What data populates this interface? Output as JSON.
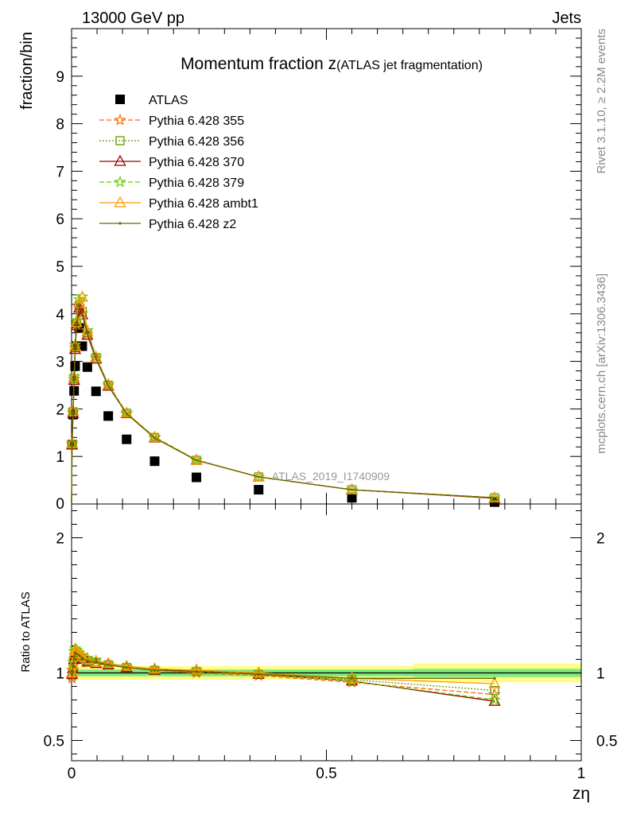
{
  "header": {
    "energy": "13000 GeV pp",
    "process": "Jets",
    "analysis": "ATLAS_2019_I1740909",
    "rivet": "Rivet 3.1.10, ≥ 2.2M events",
    "site": "mcplots.cern.ch [arXiv:1306.3436]"
  },
  "chart_data": [
    {
      "type": "line",
      "title_main": "Momentum fraction z",
      "title_sub": "(ATLAS jet fragmentation)",
      "xlabel": "zη",
      "ylabel": "fraction/bin",
      "xlim": [
        0,
        1
      ],
      "ylim": [
        0,
        10
      ],
      "yticks": [
        "1",
        "2",
        "3",
        "4",
        "5",
        "6",
        "7",
        "8",
        "9"
      ],
      "xticks": [
        "0",
        "0.5",
        "1"
      ],
      "legend_placement": "top-left",
      "data_series": {
        "name": "ATLAS",
        "color": "#000000",
        "x": [
          0.001,
          0.003,
          0.005,
          0.007,
          0.01,
          0.015,
          0.021,
          0.031,
          0.048,
          0.072,
          0.108,
          0.163,
          0.245,
          0.367,
          0.55,
          0.83
        ],
        "y": [
          1.25,
          1.88,
          2.38,
          2.9,
          3.32,
          3.7,
          3.32,
          2.88,
          2.37,
          1.85,
          1.36,
          0.9,
          0.56,
          0.3,
          0.13,
          0.04
        ]
      },
      "series": [
        {
          "name": "Pythia 6.428 355",
          "color": "#ff6600",
          "marker": "star",
          "dash": "6,3",
          "x": [
            0,
            0.001,
            0.003,
            0.005,
            0.007,
            0.01,
            0.015,
            0.021,
            0.031,
            0.048,
            0.072,
            0.108,
            0.163,
            0.245,
            0.367,
            0.55,
            0.83
          ],
          "y": [
            0.05,
            1.25,
            1.92,
            2.62,
            3.28,
            3.77,
            4.15,
            4.01,
            3.57,
            3.06,
            2.49,
            1.9,
            1.39,
            0.92,
            0.57,
            0.3,
            0.13
          ]
        },
        {
          "name": "Pythia 6.428 356",
          "color": "#669900",
          "marker": "square",
          "dash": "2,2",
          "x": [
            0,
            0.001,
            0.003,
            0.005,
            0.007,
            0.01,
            0.015,
            0.021,
            0.031,
            0.048,
            0.072,
            0.108,
            0.163,
            0.245,
            0.367,
            0.55,
            0.83
          ],
          "y": [
            0.05,
            1.26,
            1.94,
            2.64,
            3.3,
            3.8,
            4.18,
            4.05,
            3.6,
            3.08,
            2.5,
            1.91,
            1.4,
            0.92,
            0.57,
            0.3,
            0.13
          ]
        },
        {
          "name": "Pythia 6.428 370",
          "color": "#990000",
          "marker": "triangle",
          "dash": "",
          "x": [
            0,
            0.001,
            0.003,
            0.005,
            0.007,
            0.01,
            0.015,
            0.021,
            0.031,
            0.048,
            0.072,
            0.108,
            0.163,
            0.245,
            0.367,
            0.55,
            0.83
          ],
          "y": [
            0.05,
            1.24,
            1.9,
            2.6,
            3.25,
            3.75,
            4.12,
            3.98,
            3.55,
            3.05,
            2.48,
            1.9,
            1.39,
            0.92,
            0.57,
            0.3,
            0.12
          ]
        },
        {
          "name": "Pythia 6.428 379",
          "color": "#66cc00",
          "marker": "star",
          "dash": "6,3",
          "x": [
            0,
            0.001,
            0.003,
            0.005,
            0.007,
            0.01,
            0.015,
            0.021,
            0.031,
            0.048,
            0.072,
            0.108,
            0.163,
            0.245,
            0.367,
            0.55,
            0.83
          ],
          "y": [
            0.05,
            1.28,
            1.97,
            2.68,
            3.35,
            3.86,
            4.3,
            4.36,
            3.65,
            3.1,
            2.52,
            1.92,
            1.41,
            0.93,
            0.57,
            0.3,
            0.13
          ]
        },
        {
          "name": "Pythia 6.428 ambt1",
          "color": "#ff9900",
          "marker": "triangle",
          "dash": "",
          "x": [
            0,
            0.001,
            0.003,
            0.005,
            0.007,
            0.01,
            0.015,
            0.021,
            0.031,
            0.048,
            0.072,
            0.108,
            0.163,
            0.245,
            0.367,
            0.55,
            0.83
          ],
          "y": [
            0.05,
            1.27,
            1.95,
            2.66,
            3.32,
            3.82,
            4.22,
            4.35,
            3.62,
            3.08,
            2.5,
            1.91,
            1.4,
            0.92,
            0.57,
            0.3,
            0.13
          ]
        },
        {
          "name": "Pythia 6.428 z2",
          "color": "#666600",
          "marker": "dot",
          "dash": "",
          "x": [
            0,
            0.001,
            0.003,
            0.005,
            0.007,
            0.01,
            0.015,
            0.021,
            0.031,
            0.048,
            0.072,
            0.108,
            0.163,
            0.245,
            0.367,
            0.55,
            0.83
          ],
          "y": [
            0.05,
            1.26,
            1.93,
            2.63,
            3.29,
            3.79,
            4.17,
            4.03,
            3.59,
            3.07,
            2.49,
            1.9,
            1.39,
            0.92,
            0.57,
            0.3,
            0.13
          ]
        }
      ]
    },
    {
      "type": "line",
      "ylabel": "Ratio to ATLAS",
      "xlabel": "zη",
      "xlim": [
        0,
        1
      ],
      "ylim": [
        0.35,
        2.25
      ],
      "yticks": [
        "0.5",
        "1",
        "2"
      ],
      "yticks_right": [
        "0.5",
        "1",
        "2"
      ],
      "xticks": [
        "0",
        "0.5",
        "1"
      ],
      "band_inner": {
        "color": "#7fe87f",
        "x": [
          0,
          0.67,
          0.67,
          1
        ],
        "half_width": [
          0.025,
          0.025,
          0.03,
          0.03
        ]
      },
      "band_outer": {
        "color": "#ffff88",
        "x": [
          0,
          0.67,
          0.67,
          1
        ],
        "half_width": [
          0.05,
          0.05,
          0.07,
          0.07
        ]
      },
      "series": [
        {
          "name": "Pythia 6.428 355",
          "color": "#ff6600",
          "marker": "star",
          "dash": "6,3",
          "x": [
            0.001,
            0.003,
            0.005,
            0.007,
            0.01,
            0.015,
            0.021,
            0.031,
            0.048,
            0.072,
            0.108,
            0.163,
            0.245,
            0.367,
            0.55,
            0.83
          ],
          "y": [
            0.96,
            1.02,
            1.1,
            1.13,
            1.13,
            1.12,
            1.1,
            1.08,
            1.07,
            1.06,
            1.04,
            1.02,
            1.0,
            0.98,
            0.93,
            0.84
          ]
        },
        {
          "name": "Pythia 6.428 356",
          "color": "#669900",
          "marker": "square",
          "dash": "2,2",
          "x": [
            0.001,
            0.003,
            0.005,
            0.007,
            0.01,
            0.015,
            0.021,
            0.031,
            0.048,
            0.072,
            0.108,
            0.163,
            0.245,
            0.367,
            0.55,
            0.83
          ],
          "y": [
            0.98,
            1.04,
            1.12,
            1.15,
            1.15,
            1.13,
            1.11,
            1.09,
            1.08,
            1.06,
            1.04,
            1.02,
            1.01,
            0.99,
            0.95,
            0.87
          ]
        },
        {
          "name": "Pythia 6.428 370",
          "color": "#990000",
          "marker": "triangle",
          "dash": "",
          "x": [
            0.001,
            0.003,
            0.005,
            0.007,
            0.01,
            0.015,
            0.021,
            0.031,
            0.048,
            0.072,
            0.108,
            0.163,
            0.245,
            0.367,
            0.55,
            0.83
          ],
          "y": [
            0.99,
            1.03,
            1.1,
            1.13,
            1.13,
            1.12,
            1.1,
            1.08,
            1.07,
            1.06,
            1.04,
            1.02,
            1.02,
            0.99,
            0.94,
            0.79
          ]
        },
        {
          "name": "Pythia 6.428 379",
          "color": "#66cc00",
          "marker": "star",
          "dash": "6,3",
          "x": [
            0.001,
            0.003,
            0.005,
            0.007,
            0.01,
            0.015,
            0.021,
            0.031,
            0.048,
            0.072,
            0.108,
            0.163,
            0.245,
            0.367,
            0.55,
            0.83
          ],
          "y": [
            1.02,
            1.08,
            1.16,
            1.18,
            1.17,
            1.15,
            1.13,
            1.11,
            1.09,
            1.07,
            1.05,
            1.03,
            1.02,
            0.99,
            0.94,
            0.8
          ]
        },
        {
          "name": "Pythia 6.428 ambt1",
          "color": "#ff9900",
          "marker": "triangle",
          "dash": "",
          "x": [
            0.001,
            0.003,
            0.005,
            0.007,
            0.01,
            0.015,
            0.021,
            0.031,
            0.048,
            0.072,
            0.108,
            0.163,
            0.245,
            0.367,
            0.55,
            0.83
          ],
          "y": [
            1.0,
            1.06,
            1.14,
            1.17,
            1.16,
            1.14,
            1.12,
            1.1,
            1.08,
            1.07,
            1.05,
            1.03,
            1.02,
            1.0,
            0.96,
            0.92
          ]
        },
        {
          "name": "Pythia 6.428 z2",
          "color": "#666600",
          "marker": "dot",
          "dash": "",
          "x": [
            0.001,
            0.003,
            0.005,
            0.007,
            0.01,
            0.015,
            0.021,
            0.031,
            0.048,
            0.072,
            0.108,
            0.163,
            0.245,
            0.367,
            0.55,
            0.83
          ],
          "y": [
            0.99,
            1.05,
            1.12,
            1.15,
            1.14,
            1.13,
            1.11,
            1.09,
            1.08,
            1.06,
            1.04,
            1.02,
            1.01,
            0.99,
            0.96,
            0.96
          ]
        }
      ]
    }
  ]
}
